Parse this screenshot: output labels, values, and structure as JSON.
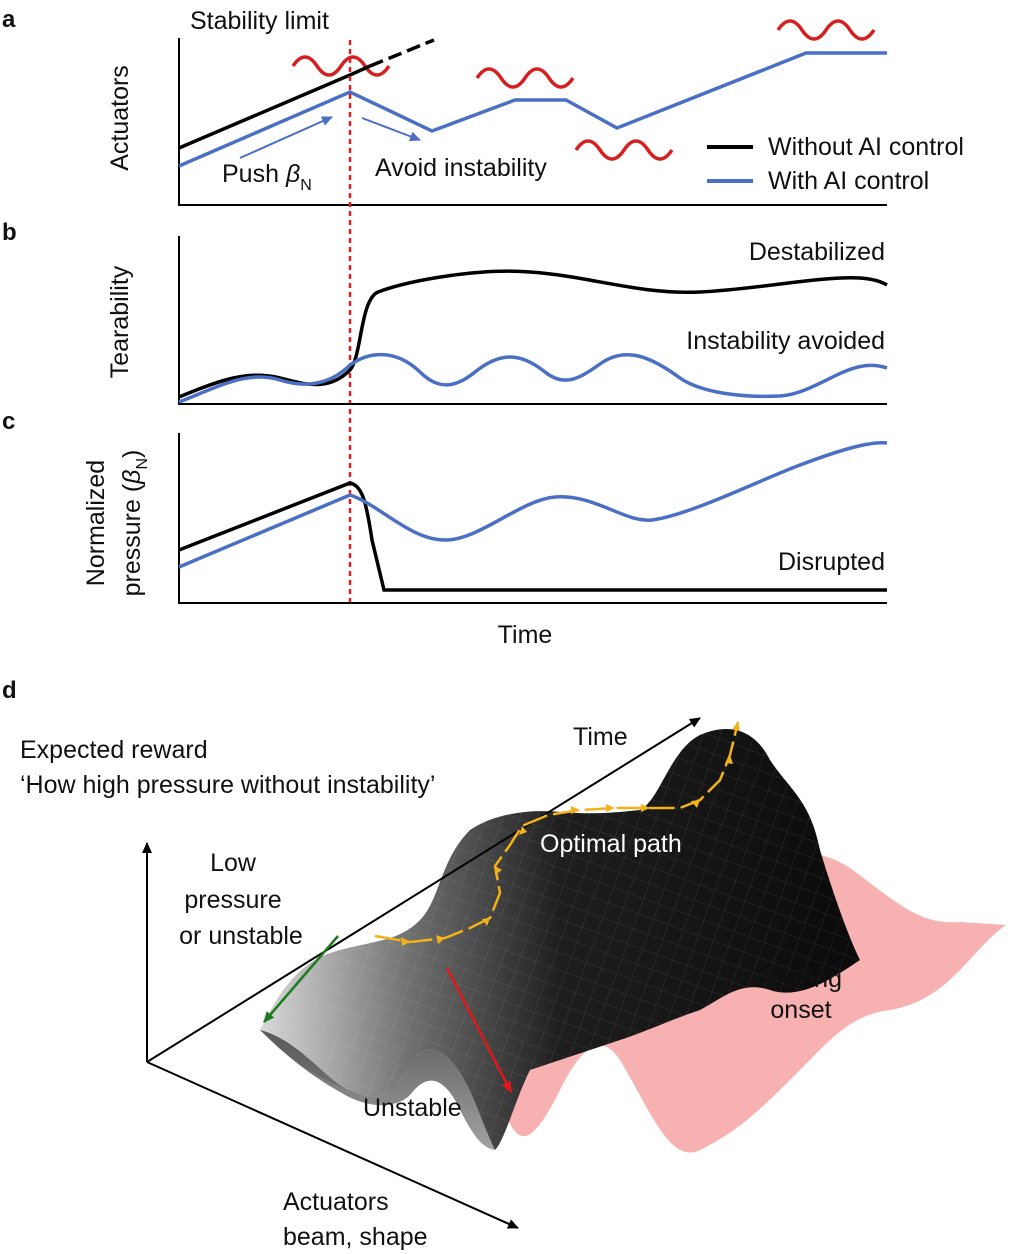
{
  "colors": {
    "without_ai": "#000000",
    "with_ai": "#4a6fc4",
    "stability_limit": "#e02020",
    "instability_wave": "#d62020",
    "tearing_region": "#f6a6a6",
    "optimal_path": "#f2b21c",
    "descent_arrow": "#1f7a1f",
    "unstable_arrow": "#e01818"
  },
  "panel_a": {
    "label": "a",
    "ylabel": "Actuators",
    "stability_limit_label": "Stability limit",
    "push_label": "Push",
    "beta_symbol": "β",
    "beta_subscript": "N",
    "avoid_label": "Avoid instability",
    "legend": [
      {
        "label": "Without AI control",
        "color": "#000000"
      },
      {
        "label": "With AI control",
        "color": "#4a6fc4"
      }
    ]
  },
  "panel_b": {
    "label": "b",
    "ylabel": "Tearability",
    "destabilized_label": "Destabilized",
    "avoided_label": "Instability avoided"
  },
  "panel_c": {
    "label": "c",
    "ylabel_line1": "Normalized",
    "ylabel_line2": "pressure (",
    "ylabel_close": ")",
    "beta_symbol": "β",
    "beta_subscript": "N",
    "disrupted_label": "Disrupted",
    "xlabel": "Time"
  },
  "panel_d": {
    "label": "d",
    "title_line1": "Expected reward",
    "title_line2": "‘How high pressure without instability’",
    "time_axis": "Time",
    "low_pressure_line1": "Low",
    "low_pressure_line2": "pressure",
    "low_pressure_line3": "or unstable",
    "optimal_path": "Optimal path",
    "tearing_line1": "Tearing",
    "tearing_line2": "onset",
    "unstable": "Unstable",
    "actuators_line1": "Actuators",
    "actuators_line2": "beam, shape"
  }
}
